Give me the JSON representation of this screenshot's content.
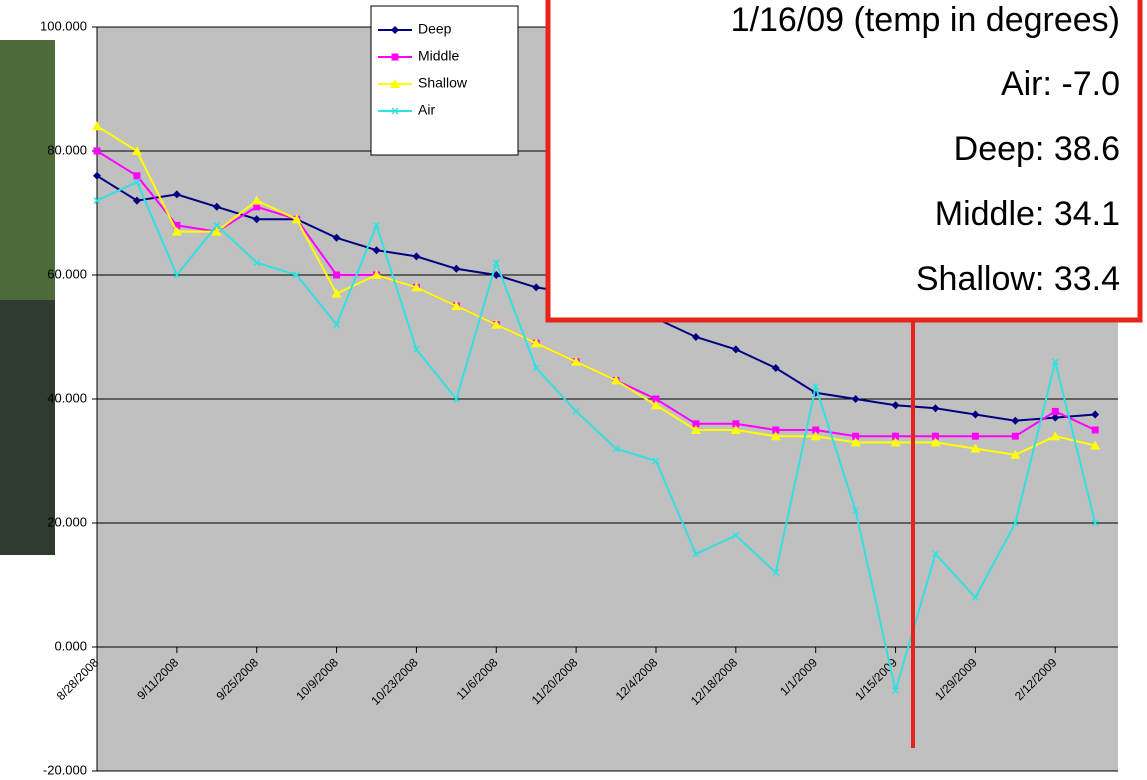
{
  "chart_data": {
    "type": "line",
    "x": [
      "8/28/2008",
      "9/4/2008",
      "9/11/2008",
      "9/18/2008",
      "9/25/2008",
      "10/2/2008",
      "10/9/2008",
      "10/16/2008",
      "10/23/2008",
      "10/30/2008",
      "11/6/2008",
      "11/13/2008",
      "11/20/2008",
      "11/27/2008",
      "12/4/2008",
      "12/11/2008",
      "12/18/2008",
      "12/25/2008",
      "1/1/2009",
      "1/8/2009",
      "1/15/2009",
      "1/22/2009",
      "1/29/2009",
      "2/5/2009",
      "2/12/2009",
      "2/19/2009"
    ],
    "series": [
      {
        "name": "Deep",
        "color": "#000080",
        "values": [
          76,
          72,
          73,
          71,
          69,
          69,
          66,
          64,
          63,
          61,
          60,
          58,
          57,
          55,
          53,
          50,
          48,
          45,
          41,
          40,
          39,
          38.5,
          37.5,
          36.5,
          37,
          37.5
        ]
      },
      {
        "name": "Middle",
        "color": "#ff00ff",
        "values": [
          80,
          76,
          68,
          67,
          71,
          69,
          60,
          60,
          58,
          55,
          52,
          49,
          46,
          43,
          40,
          36,
          36,
          35,
          35,
          34,
          34,
          34,
          34,
          34,
          38,
          35
        ]
      },
      {
        "name": "Shallow",
        "color": "#ffff00",
        "values": [
          84,
          80,
          67,
          67,
          72,
          69,
          57,
          60,
          58,
          55,
          52,
          49,
          46,
          43,
          39,
          35,
          35,
          34,
          34,
          33,
          33,
          33,
          32,
          31,
          34,
          32.5
        ]
      },
      {
        "name": "Air",
        "color": "#33e0e0",
        "values": [
          72,
          75,
          60,
          68,
          62,
          60,
          52,
          68,
          48,
          40,
          62,
          45,
          38,
          32,
          30,
          15,
          18,
          12,
          42,
          22,
          -7,
          15,
          8,
          20,
          46,
          20
        ]
      }
    ],
    "xlim": [
      "8/28/2008",
      "2/23/2009"
    ],
    "xticks": [
      "8/28/2008",
      "9/11/2008",
      "9/25/2008",
      "10/9/2008",
      "10/23/2008",
      "11/6/2008",
      "11/20/2008",
      "12/4/2008",
      "12/18/2008",
      "1/1/2009",
      "1/15/2009",
      "1/29/2009",
      "2/12/2009"
    ],
    "ylim": [
      -20,
      100
    ],
    "yticks": [
      {
        "value": -20,
        "label": "-20.000"
      },
      {
        "value": 0,
        "label": "0.000"
      },
      {
        "value": 20,
        "label": "20.000"
      },
      {
        "value": 40,
        "label": "40.000"
      },
      {
        "value": 60,
        "label": "60.000"
      },
      {
        "value": 80,
        "label": "80.000"
      },
      {
        "value": 100,
        "label": "100.000"
      }
    ],
    "grid": true,
    "legend": "top",
    "callout": {
      "title": "1/16/09 (temp in degrees)",
      "lines": [
        "Air: -7.0",
        "Deep: 38.6",
        "Middle: 34.1",
        "Shallow: 33.4"
      ]
    }
  }
}
